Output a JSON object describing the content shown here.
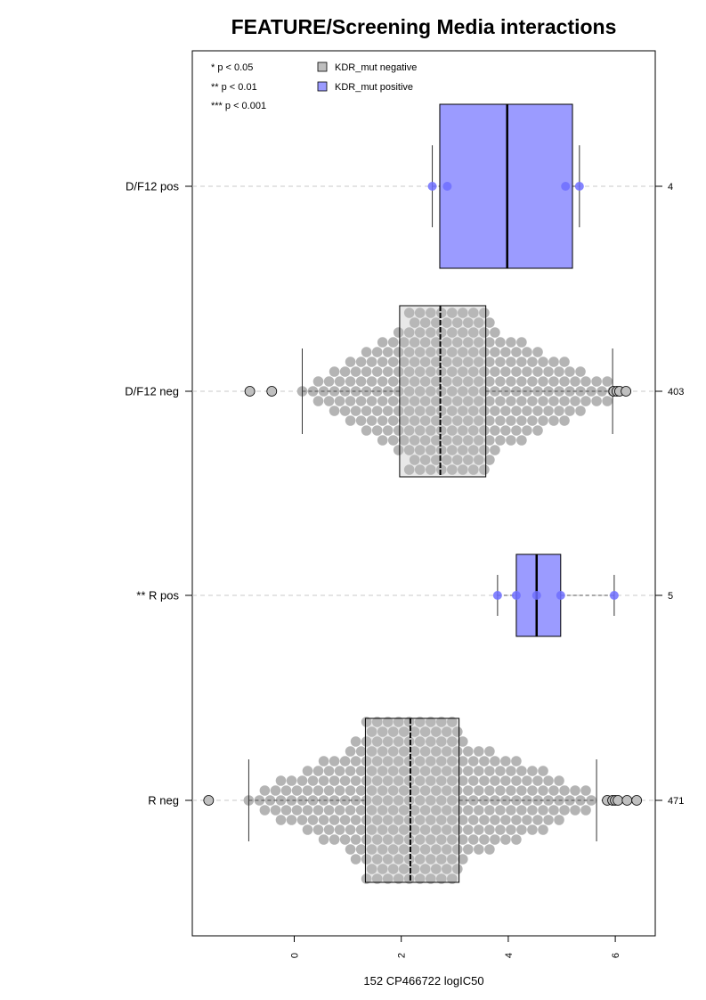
{
  "chart_data": {
    "type": "boxplot-beeswarm",
    "title": "FEATURE/Screening Media interactions",
    "xlabel": "152 CP466722 logIC50",
    "ylabel": "",
    "orientation": "horizontal",
    "xlim": [
      -1.9,
      6.8
    ],
    "x_ticks": [
      "0",
      "2",
      "4",
      "6"
    ],
    "x_tick_values": [
      0,
      2,
      4,
      6
    ],
    "grid": "dashed horizontal lines at each group",
    "significance_legend": [
      "* p < 0.05",
      "** p < 0.01",
      "*** p < 0.001"
    ],
    "legend": [
      {
        "label": "KDR_mut negative",
        "color": "#bebebe"
      },
      {
        "label": "KDR_mut positive",
        "color": "#9b9bff"
      }
    ],
    "legend_position": "top-left",
    "groups": [
      {
        "label": "D/F12 pos",
        "count": "4",
        "kdr_mut": "positive",
        "whisker_low": 2.58,
        "q1": 2.72,
        "median": 3.98,
        "q3": 5.2,
        "whisker_high": 5.33,
        "points": [
          2.58,
          2.86,
          5.07,
          5.33
        ],
        "outliers": []
      },
      {
        "label": "D/F12 neg",
        "count": "403",
        "kdr_mut": "negative",
        "whisker_low": 0.15,
        "q1": 1.97,
        "median": 2.73,
        "q3": 3.58,
        "whisker_high": 5.95,
        "points_note": "dense beeswarm of 403 cell lines, roughly 0.1 to 6.0",
        "outliers": [
          -0.83,
          -0.42,
          5.97,
          6.03,
          6.08,
          6.2
        ]
      },
      {
        "label": "** R pos",
        "count": "5",
        "kdr_mut": "positive",
        "whisker_low": 3.8,
        "q1": 4.15,
        "median": 4.53,
        "q3": 4.98,
        "whisker_high": 5.98,
        "points": [
          3.8,
          4.15,
          4.53,
          4.98,
          5.98
        ],
        "outliers": []
      },
      {
        "label": "R neg",
        "count": "471",
        "kdr_mut": "negative",
        "whisker_low": -0.85,
        "q1": 1.33,
        "median": 2.17,
        "q3": 3.08,
        "whisker_high": 5.65,
        "points_note": "dense beeswarm of 471 cell lines, roughly -0.8 to 5.9",
        "outliers": [
          -1.6,
          5.85,
          5.95,
          6.0,
          6.05,
          6.22,
          6.4
        ]
      }
    ]
  }
}
